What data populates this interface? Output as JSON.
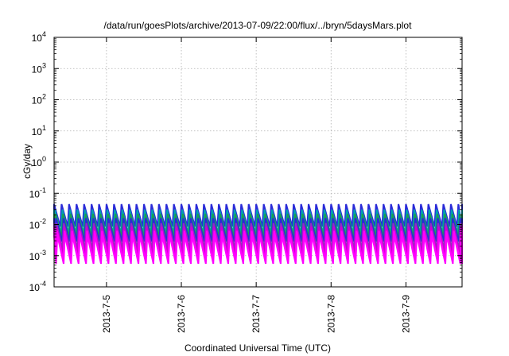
{
  "chart_data": {
    "type": "line",
    "title": "/data/run/goesPlots/archive/2013-07-09/22:00/flux/../bryn/5daysMars.plot",
    "xlabel": "Coordinated Universal Time (UTC)",
    "ylabel": "cGy/day",
    "yscale": "log",
    "ylim": [
      0.0001,
      10000
    ],
    "xlim": [
      0,
      5.45
    ],
    "x_ticks": [
      {
        "value": 0.7,
        "label": "2013-7-5"
      },
      {
        "value": 1.7,
        "label": "2013-7-6"
      },
      {
        "value": 2.7,
        "label": "2013-7-7"
      },
      {
        "value": 3.7,
        "label": "2013-7-8"
      },
      {
        "value": 4.7,
        "label": "2013-7-9"
      }
    ],
    "y_ticks": [
      {
        "value": 0.0001,
        "base": "10",
        "exp": "-4"
      },
      {
        "value": 0.001,
        "base": "10",
        "exp": "-3"
      },
      {
        "value": 0.01,
        "base": "10",
        "exp": "-2"
      },
      {
        "value": 0.1,
        "base": "10",
        "exp": "-1"
      },
      {
        "value": 1,
        "base": "10",
        "exp": "0"
      },
      {
        "value": 10,
        "base": "10",
        "exp": "1"
      },
      {
        "value": 100,
        "base": "10",
        "exp": "2"
      },
      {
        "value": 1000,
        "base": "10",
        "exp": "3"
      },
      {
        "value": 10000,
        "base": "10",
        "exp": "4"
      }
    ],
    "grid": true,
    "sawtooth_period_days": 0.1,
    "series": [
      {
        "color": "#2a2ad8",
        "peak": 0.045,
        "trough": 0.0085,
        "offset": 0.0
      },
      {
        "color": "#00a0b0",
        "peak": 0.03,
        "trough": 0.005,
        "offset": 0.01
      },
      {
        "color": "#1aa050",
        "peak": 0.022,
        "trough": 0.0038,
        "offset": 0.02
      },
      {
        "color": "#2a2ad8",
        "peak": 0.016,
        "trough": 0.0028,
        "offset": 0.025
      },
      {
        "color": "#9030c0",
        "peak": 0.011,
        "trough": 0.0017,
        "offset": 0.03
      },
      {
        "color": "#d000d0",
        "peak": 0.0085,
        "trough": 0.0011,
        "offset": 0.035
      },
      {
        "color": "#ff00ff",
        "peak": 0.0062,
        "trough": 0.0007,
        "offset": 0.04
      },
      {
        "color": "#ff00ff",
        "peak": 0.0045,
        "trough": 0.00055,
        "offset": 0.045
      }
    ]
  }
}
